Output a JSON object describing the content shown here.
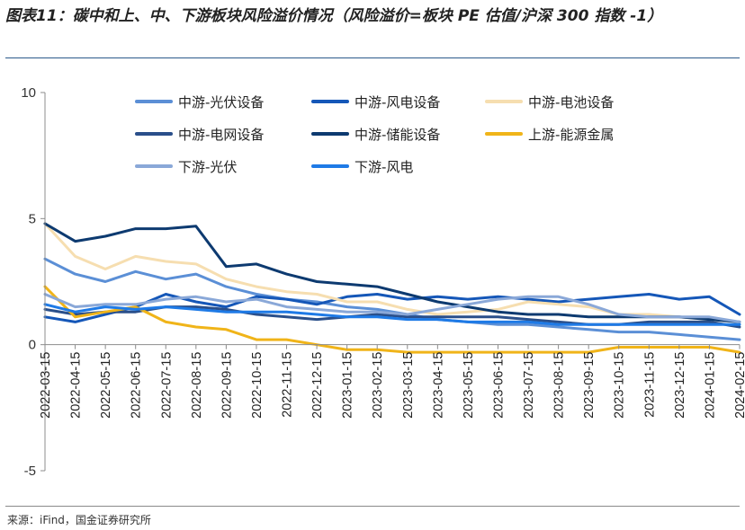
{
  "title": "图表11：碳中和上、中、下游板块风险溢价情况（风险溢价=板块 PE 估值/沪深 300 指数 -1）",
  "source": "来源：iFind，国金证券研究所",
  "chart_data": {
    "type": "line",
    "title": "图表11：碳中和上、中、下游板块风险溢价情况（风险溢价=板块 PE 估值/沪深 300 指数 -1）",
    "xlabel": "",
    "ylabel": "",
    "ylim": [
      -5,
      10
    ],
    "yticks": [
      -5,
      0,
      5,
      10
    ],
    "grid": false,
    "legend_position": "top",
    "x": [
      "2022-03-15",
      "2022-04-15",
      "2022-05-15",
      "2022-06-15",
      "2022-07-15",
      "2022-08-15",
      "2022-09-15",
      "2022-10-15",
      "2022-11-15",
      "2022-12-15",
      "2023-01-15",
      "2023-02-15",
      "2023-03-15",
      "2023-04-15",
      "2023-05-15",
      "2023-06-15",
      "2023-07-15",
      "2023-08-15",
      "2023-09-15",
      "2023-10-15",
      "2023-11-15",
      "2023-12-15",
      "2024-01-15",
      "2024-02-15"
    ],
    "series": [
      {
        "name": "中游-光伏设备",
        "color": "#5b8fd6",
        "width": 3,
        "values": [
          3.4,
          2.8,
          2.5,
          2.9,
          2.6,
          2.8,
          2.3,
          2.0,
          1.8,
          1.7,
          1.5,
          1.4,
          1.2,
          1.0,
          0.9,
          0.8,
          0.8,
          0.7,
          0.6,
          0.5,
          0.5,
          0.4,
          0.3,
          0.2
        ]
      },
      {
        "name": "中游-风电设备",
        "color": "#1557b8",
        "width": 3,
        "values": [
          1.1,
          0.9,
          1.2,
          1.5,
          2.0,
          1.7,
          1.5,
          1.9,
          1.8,
          1.6,
          1.9,
          2.0,
          1.8,
          1.9,
          1.8,
          1.9,
          1.8,
          1.7,
          1.8,
          1.9,
          2.0,
          1.8,
          1.9,
          1.2
        ]
      },
      {
        "name": "中游-电池设备",
        "color": "#f6deb0",
        "width": 3,
        "values": [
          4.8,
          3.5,
          3.0,
          3.5,
          3.3,
          3.2,
          2.6,
          2.3,
          2.1,
          2.0,
          1.7,
          1.7,
          1.4,
          1.2,
          1.3,
          1.4,
          1.7,
          1.6,
          1.5,
          1.2,
          1.2,
          1.1,
          1.0,
          0.9
        ]
      },
      {
        "name": "中游-电网设备",
        "color": "#2a4f8a",
        "width": 3,
        "values": [
          1.4,
          1.2,
          1.3,
          1.3,
          1.5,
          1.5,
          1.4,
          1.2,
          1.1,
          1.0,
          1.1,
          1.2,
          1.1,
          1.1,
          1.1,
          1.1,
          1.0,
          0.9,
          0.8,
          0.8,
          0.9,
          0.9,
          0.9,
          0.7
        ]
      },
      {
        "name": "中游-储能设备",
        "color": "#0d3a70",
        "width": 3,
        "values": [
          4.8,
          4.1,
          4.3,
          4.6,
          4.6,
          4.7,
          3.1,
          3.2,
          2.8,
          2.5,
          2.4,
          2.3,
          2.0,
          1.7,
          1.5,
          1.3,
          1.2,
          1.2,
          1.1,
          1.1,
          1.1,
          1.1,
          1.0,
          0.9
        ]
      },
      {
        "name": "上游-能源金属",
        "color": "#f0b419",
        "width": 3,
        "values": [
          2.3,
          1.1,
          1.3,
          1.5,
          0.9,
          0.7,
          0.6,
          0.2,
          0.2,
          0.0,
          -0.2,
          -0.2,
          -0.3,
          -0.3,
          -0.3,
          -0.3,
          -0.3,
          -0.3,
          -0.3,
          -0.1,
          -0.1,
          -0.1,
          -0.1,
          -0.3
        ]
      },
      {
        "name": "下游-光伏",
        "color": "#8aa8d8",
        "width": 3,
        "values": [
          2.0,
          1.5,
          1.6,
          1.6,
          1.8,
          1.9,
          1.7,
          1.8,
          1.5,
          1.4,
          1.3,
          1.3,
          1.2,
          1.4,
          1.6,
          1.8,
          1.9,
          1.9,
          1.6,
          1.2,
          1.1,
          1.1,
          1.1,
          0.9
        ]
      },
      {
        "name": "下游-风电",
        "color": "#1e7ae6",
        "width": 3,
        "values": [
          1.6,
          1.3,
          1.5,
          1.4,
          1.5,
          1.4,
          1.3,
          1.3,
          1.3,
          1.2,
          1.1,
          1.1,
          1.0,
          1.0,
          0.9,
          0.9,
          0.9,
          0.8,
          0.8,
          0.8,
          0.8,
          0.8,
          0.8,
          0.8
        ]
      }
    ]
  }
}
